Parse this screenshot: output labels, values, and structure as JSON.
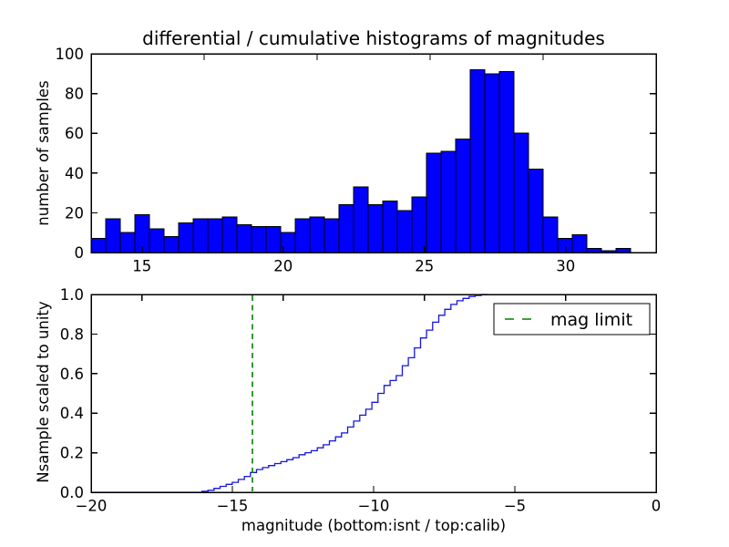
{
  "figure": {
    "title": "differential / cumulative histograms of magnitudes",
    "background": "#ffffff"
  },
  "top_plot": {
    "ylabel": "number of samples",
    "xtick_labels": [
      "15",
      "20",
      "25",
      "30"
    ],
    "ytick_labels": [
      "0",
      "20",
      "40",
      "60",
      "80",
      "100"
    ]
  },
  "bottom_plot": {
    "ylabel": "Nsample scaled to unity",
    "xlabel": "magnitude (bottom:isnt / top:calib)",
    "xtick_labels": [
      "−20",
      "−15",
      "−10",
      "−5",
      "0"
    ],
    "ytick_labels": [
      "0.0",
      "0.2",
      "0.4",
      "0.6",
      "0.8",
      "1.0"
    ],
    "legend": {
      "label": "mag limit"
    }
  },
  "colors": {
    "bar_fill": "#0000ff",
    "bar_edge": "#000000",
    "curve": "#1515e0",
    "mag_limit": "#008000",
    "frame": "#000000",
    "text": "#000000"
  },
  "chart_data": [
    {
      "type": "bar",
      "subplot": "top",
      "title": "differential / cumulative histograms of magnitudes",
      "ylabel": "number of samples",
      "xlim": [
        13.2,
        33.2
      ],
      "ylim": [
        0,
        100
      ],
      "xticks": [
        15,
        20,
        25,
        30
      ],
      "yticks": [
        0,
        20,
        40,
        60,
        80,
        100
      ],
      "top_spine_extra_ticks_x": [
        17.2,
        21.2,
        25.2,
        29.2
      ],
      "bin_start": 13.2,
      "bin_width": 0.516,
      "values": [
        7,
        17,
        10,
        19,
        12,
        8,
        15,
        17,
        17,
        18,
        14,
        13,
        13,
        10,
        17,
        18,
        17,
        24,
        33,
        24,
        26,
        21,
        28,
        50,
        51,
        57,
        92,
        90,
        91,
        60,
        42,
        18,
        7,
        9,
        2,
        1,
        2
      ],
      "grid": false
    },
    {
      "type": "line",
      "subplot": "bottom",
      "style": "cumulative-step",
      "ylabel": "Nsample scaled to unity",
      "xlabel": "magnitude (bottom:isnt / top:calib)",
      "xlim": [
        -20,
        0
      ],
      "ylim": [
        0.0,
        1.0
      ],
      "xticks": [
        -20,
        -15,
        -10,
        -5,
        0
      ],
      "yticks": [
        0.0,
        0.2,
        0.4,
        0.6,
        0.8,
        1.0
      ],
      "top_spine_extra_ticks_x": [
        -18.2,
        -13.2,
        -8.2,
        -3.2
      ],
      "step_start": -16.08,
      "step_width": 0.215,
      "cumulative_values": [
        0.005,
        0.01,
        0.02,
        0.03,
        0.04,
        0.05,
        0.065,
        0.08,
        0.1,
        0.115,
        0.125,
        0.135,
        0.145,
        0.155,
        0.165,
        0.175,
        0.19,
        0.2,
        0.21,
        0.225,
        0.24,
        0.26,
        0.28,
        0.3,
        0.33,
        0.36,
        0.39,
        0.42,
        0.455,
        0.5,
        0.54,
        0.565,
        0.59,
        0.64,
        0.68,
        0.73,
        0.78,
        0.82,
        0.86,
        0.895,
        0.925,
        0.95,
        0.968,
        0.98,
        0.99,
        0.995,
        1.0
      ],
      "vline": {
        "x": -14.29,
        "label": "mag limit",
        "style": "dashed"
      },
      "legend": {
        "label": "mag limit",
        "position": "upper right"
      },
      "grid": false
    }
  ]
}
